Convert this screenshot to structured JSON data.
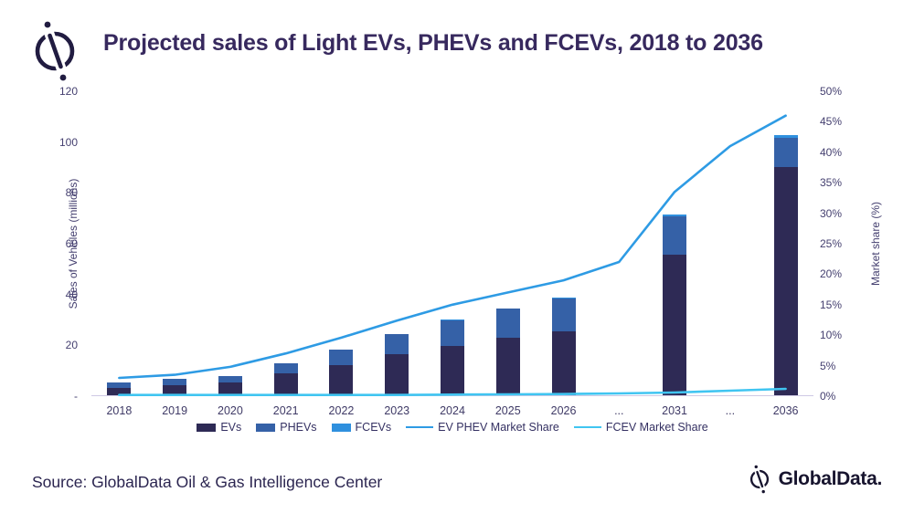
{
  "header": {
    "title": "Projected sales of Light EVs, PHEVs and FCEVs, 2018 to 2036"
  },
  "footer": {
    "source": "Source: GlobalData Oil & Gas Intelligence Center",
    "brand": "GlobalData."
  },
  "colors": {
    "evs": "#2e2a55",
    "phevs": "#3561a7",
    "fcevs": "#2f90de",
    "ev_phev_line": "#2e9be4",
    "fcev_line": "#40c5f1",
    "title_text": "#37295e",
    "axis_text": "#454070",
    "baseline": "#cfc9e4"
  },
  "chart_data": {
    "type": "bar",
    "subtype": "stacked-bars-with-lines",
    "title": "Projected sales of Light EVs, PHEVs and FCEVs, 2018 to 2036",
    "categories": [
      "2018",
      "2019",
      "2020",
      "2021",
      "2022",
      "2023",
      "2024",
      "2025",
      "2026",
      "...",
      "2031",
      "...",
      "2036"
    ],
    "series": [
      {
        "name": "EVs",
        "color": "#2e2a55",
        "values": [
          3,
          4,
          5,
          8.5,
          12,
          16,
          19.5,
          22.5,
          25,
          null,
          55.5,
          null,
          90
        ]
      },
      {
        "name": "PHEVs",
        "color": "#3561a7",
        "values": [
          2,
          2.5,
          2.5,
          4,
          6,
          8,
          10,
          11.5,
          13,
          null,
          15,
          null,
          11.5
        ]
      },
      {
        "name": "FCEVs",
        "color": "#2f90de",
        "values": [
          0,
          0,
          0,
          0,
          0,
          0,
          0.3,
          0.3,
          0.4,
          null,
          0.5,
          null,
          1
        ]
      }
    ],
    "lines": [
      {
        "name": "EV PHEV Market Share",
        "color": "#2e9be4",
        "axis": "right",
        "values": [
          3,
          3.5,
          4.8,
          7,
          9.6,
          12.4,
          15,
          17,
          19,
          22,
          33.5,
          41,
          46
        ]
      },
      {
        "name": "FCEV Market Share",
        "color": "#40c5f1",
        "axis": "right",
        "values": [
          0.2,
          0.2,
          0.2,
          0.2,
          0.2,
          0.2,
          0.25,
          0.3,
          0.35,
          0.45,
          0.6,
          0.9,
          1.2
        ]
      }
    ],
    "left_axis": {
      "label": "Sales of Vehicles (millions)",
      "range": [
        0,
        120
      ],
      "tick_labels": [
        "120",
        "100",
        "80",
        "60",
        "40",
        "20",
        "-"
      ]
    },
    "right_axis": {
      "label": "Market share (%)",
      "range": [
        0,
        50
      ],
      "tick_labels": [
        "50%",
        "45%",
        "40%",
        "35%",
        "30%",
        "25%",
        "20%",
        "15%",
        "10%",
        "5%",
        "0%"
      ]
    },
    "legend": [
      {
        "label": "EVs",
        "type": "box",
        "color": "#2e2a55"
      },
      {
        "label": "PHEVs",
        "type": "box",
        "color": "#3561a7"
      },
      {
        "label": "FCEVs",
        "type": "box",
        "color": "#2f90de"
      },
      {
        "label": "EV PHEV Market Share",
        "type": "line",
        "color": "#2e9be4"
      },
      {
        "label": "FCEV Market Share",
        "type": "line",
        "color": "#40c5f1"
      }
    ],
    "layout": {
      "grid": false,
      "legend_position": "bottom"
    }
  }
}
